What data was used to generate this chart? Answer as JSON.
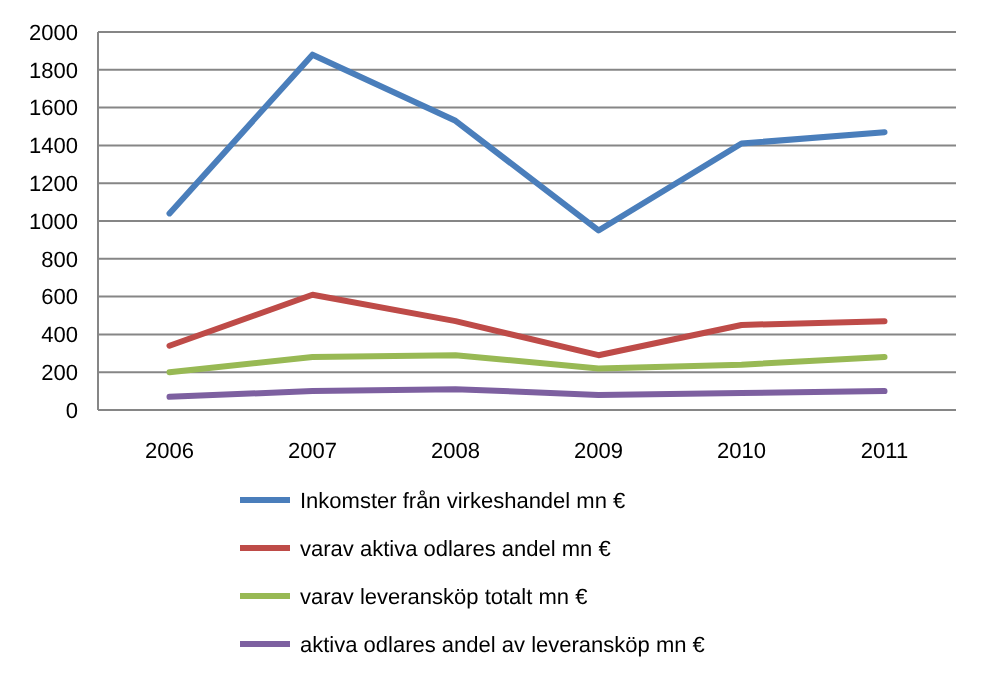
{
  "chart_data": {
    "type": "line",
    "categories": [
      "2006",
      "2007",
      "2008",
      "2009",
      "2010",
      "2011"
    ],
    "series": [
      {
        "name": "Inkomster från virkeshandel mn €",
        "color": "#4a7ebb",
        "values": [
          1040,
          1880,
          1530,
          950,
          1410,
          1470
        ]
      },
      {
        "name": "varav aktiva odlares andel mn €",
        "color": "#be4b48",
        "values": [
          340,
          610,
          470,
          290,
          450,
          470
        ]
      },
      {
        "name": "varav leveransköp totalt mn €",
        "color": "#98b954",
        "values": [
          200,
          280,
          290,
          220,
          240,
          280
        ]
      },
      {
        "name": "aktiva odlares andel av leveransköp mn €",
        "color": "#7d60a0",
        "values": [
          70,
          100,
          110,
          80,
          90,
          100
        ]
      }
    ],
    "ylim": [
      0,
      2000
    ],
    "yticks": [
      0,
      200,
      400,
      600,
      800,
      1000,
      1200,
      1400,
      1600,
      1800,
      2000
    ],
    "grid": "y",
    "legend": "bottom",
    "marker": "none",
    "line_style": "solid"
  }
}
